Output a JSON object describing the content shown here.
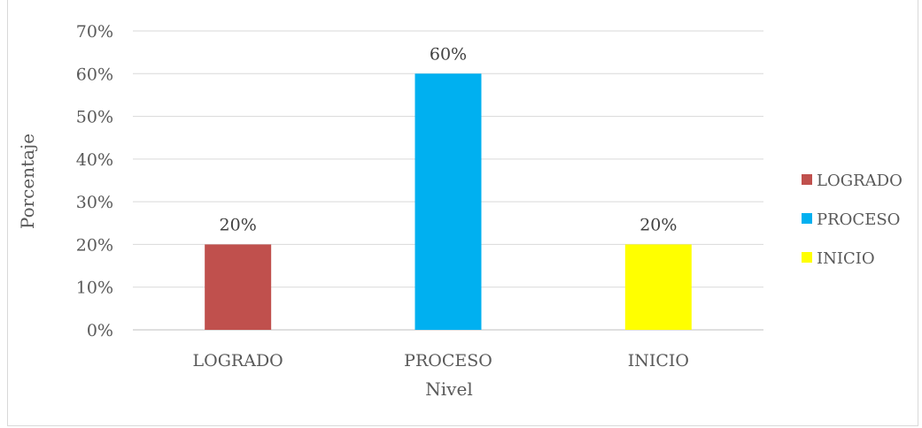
{
  "chart_data": {
    "type": "bar",
    "title": "",
    "xlabel": "Nivel",
    "ylabel": "Porcentaje",
    "ylim": [
      0,
      70
    ],
    "yticks": [
      "0%",
      "10%",
      "20%",
      "30%",
      "40%",
      "50%",
      "60%",
      "70%"
    ],
    "ytick_values": [
      0,
      10,
      20,
      30,
      40,
      50,
      60,
      70
    ],
    "categories": [
      "LOGRADO",
      "PROCESO",
      "INICIO"
    ],
    "values": [
      20,
      60,
      20
    ],
    "data_labels": [
      "20%",
      "60%",
      "20%"
    ],
    "colors": [
      "#c0504d",
      "#00b0f0",
      "#ffff00"
    ],
    "grid": true,
    "legend": {
      "position": "right",
      "entries": [
        "LOGRADO",
        "PROCESO",
        "INICIO"
      ]
    }
  }
}
